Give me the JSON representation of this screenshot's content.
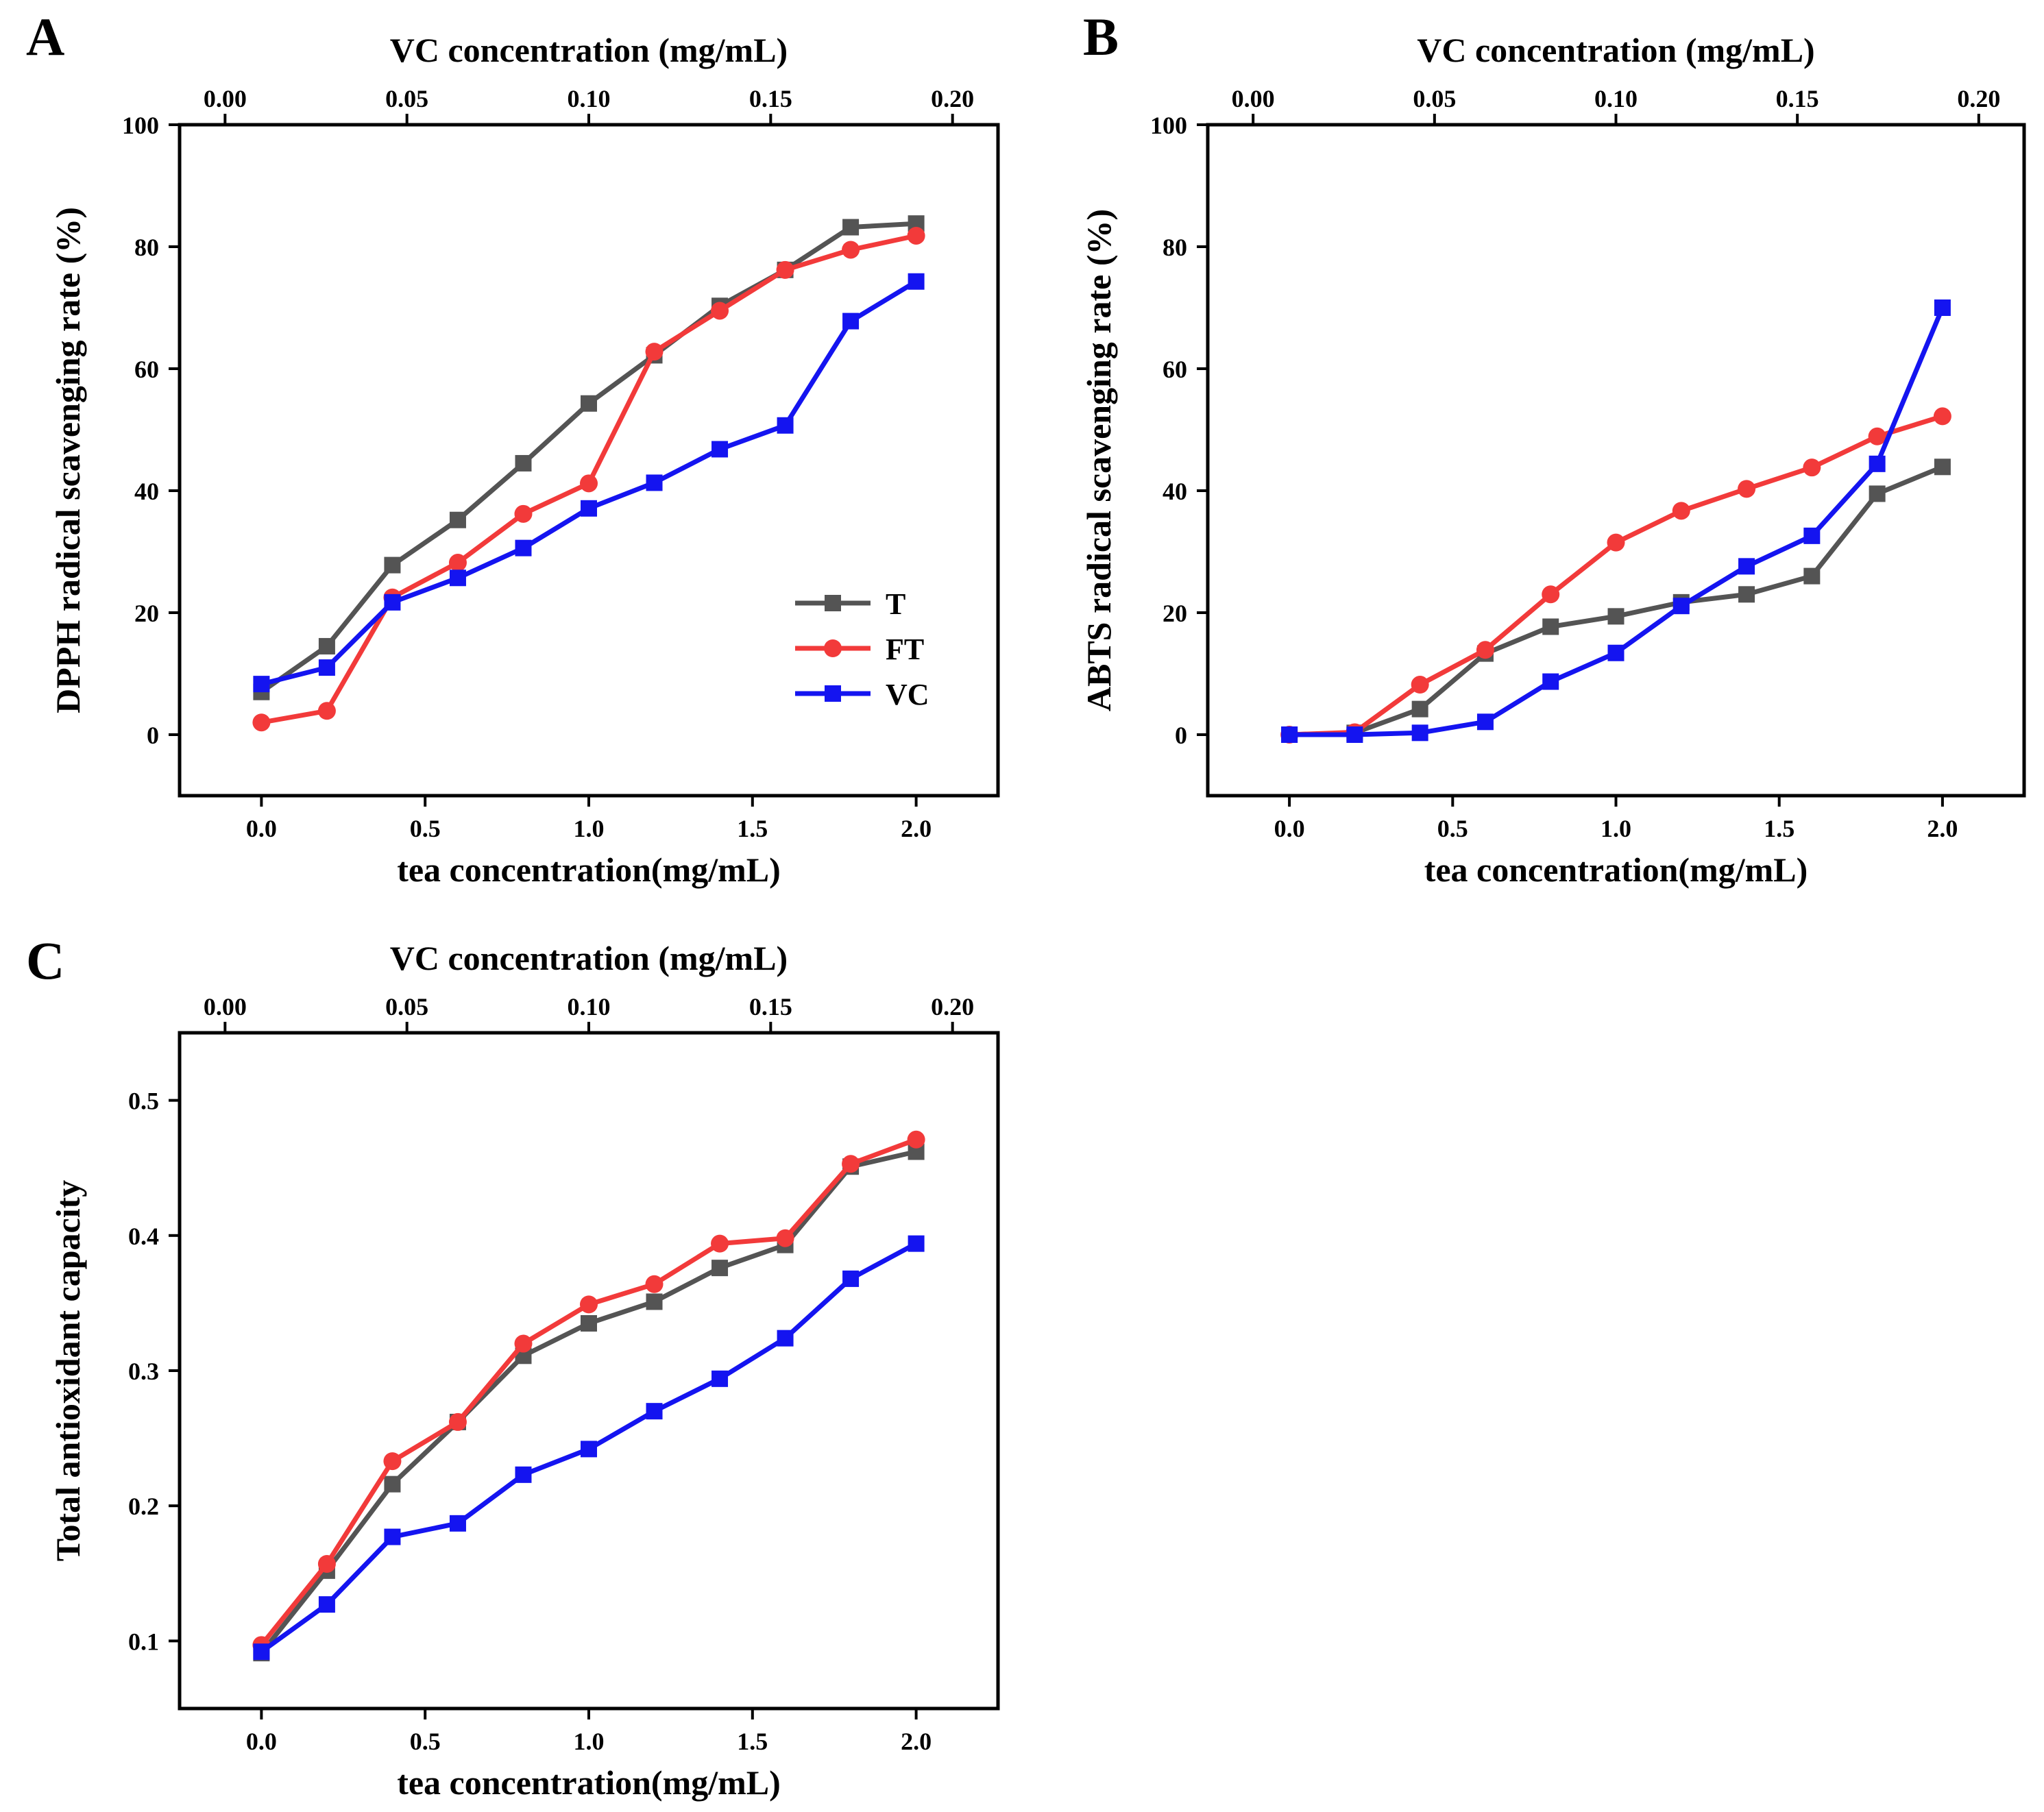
{
  "colors": {
    "T": "#545454",
    "FT": "#f23a3a",
    "VC": "#1414f0"
  },
  "chart_data": [
    {
      "panel_label": "A",
      "type": "line",
      "title": "",
      "xlabel": "tea concentration(mg/mL)",
      "ylabel": "DPPH radical scavenging rate (%)",
      "x2label": "VC concentration (mg/mL)",
      "xlim": [
        -0.25,
        2.25
      ],
      "ylim": [
        -10,
        100
      ],
      "x2lim": [
        -0.0125,
        0.2125
      ],
      "xticks": [
        "0.0",
        "0.5",
        "1.0",
        "1.5",
        "2.0"
      ],
      "yticks": [
        "0",
        "20",
        "40",
        "60",
        "80",
        "100"
      ],
      "x2ticks": [
        "0.00",
        "0.05",
        "0.10",
        "0.15",
        "0.20"
      ],
      "x": [
        0.0,
        0.2,
        0.4,
        0.6,
        0.8,
        1.0,
        1.2,
        1.4,
        1.6,
        1.8,
        2.0
      ],
      "legend": {
        "position": "lower-right",
        "entries": [
          "T",
          "FT",
          "VC"
        ]
      },
      "series": [
        {
          "name": "T",
          "marker": "square",
          "values": [
            7,
            14.5,
            27.8,
            35.2,
            44.5,
            54.3,
            62.2,
            70.3,
            76.2,
            83.2,
            83.8
          ]
        },
        {
          "name": "FT",
          "marker": "circle",
          "values": [
            2,
            3.9,
            22.5,
            28.2,
            36.2,
            41.2,
            62.8,
            69.5,
            76.2,
            79.5,
            81.8
          ]
        },
        {
          "name": "VC",
          "marker": "square",
          "values": [
            8.3,
            11,
            21.7,
            25.7,
            30.6,
            37.1,
            41.3,
            46.8,
            50.7,
            67.8,
            74.3
          ]
        }
      ]
    },
    {
      "panel_label": "B",
      "type": "line",
      "title": "",
      "xlabel": "tea concentration(mg/mL)",
      "ylabel": "ABTS radical scavenging rate (%)",
      "x2label": "VC concentration (mg/mL)",
      "xlim": [
        -0.25,
        2.25
      ],
      "ylim": [
        -10,
        100
      ],
      "x2lim": [
        -0.0125,
        0.2125
      ],
      "xticks": [
        "0.0",
        "0.5",
        "1.0",
        "1.5",
        "2.0"
      ],
      "yticks": [
        "0",
        "20",
        "40",
        "60",
        "80",
        "100"
      ],
      "x2ticks": [
        "0.00",
        "0.05",
        "0.10",
        "0.15",
        "0.20"
      ],
      "x": [
        0.0,
        0.2,
        0.4,
        0.6,
        0.8,
        1.0,
        1.2,
        1.4,
        1.6,
        1.8,
        2.0
      ],
      "series": [
        {
          "name": "T",
          "marker": "square",
          "values": [
            0,
            0.3,
            4.2,
            13.3,
            17.7,
            19.4,
            21.7,
            23,
            26,
            39.5,
            43.9
          ]
        },
        {
          "name": "FT",
          "marker": "circle",
          "values": [
            0,
            0.4,
            8.2,
            13.9,
            23,
            31.5,
            36.7,
            40.3,
            43.8,
            48.9,
            52.2
          ]
        },
        {
          "name": "VC",
          "marker": "square",
          "values": [
            0,
            0,
            0.3,
            2.1,
            8.7,
            13.4,
            21.1,
            27.6,
            32.6,
            44.4,
            70
          ]
        }
      ]
    },
    {
      "panel_label": "C",
      "type": "line",
      "title": "",
      "xlabel": "tea concentration(mg/mL)",
      "ylabel": "Total antioxidant capacity",
      "x2label": "VC concentration (mg/mL)",
      "xlim": [
        -0.25,
        2.25
      ],
      "ylim": [
        0.05,
        0.55
      ],
      "x2lim": [
        -0.0125,
        0.2125
      ],
      "xticks": [
        "0.0",
        "0.5",
        "1.0",
        "1.5",
        "2.0"
      ],
      "yticks": [
        "0.1",
        "0.2",
        "0.3",
        "0.4",
        "0.5"
      ],
      "x2ticks": [
        "0.00",
        "0.05",
        "0.10",
        "0.15",
        "0.20"
      ],
      "x": [
        0.0,
        0.2,
        0.4,
        0.6,
        0.8,
        1.0,
        1.2,
        1.4,
        1.6,
        1.8,
        2.0
      ],
      "series": [
        {
          "name": "T",
          "marker": "square",
          "values": [
            0.091,
            0.152,
            0.216,
            0.262,
            0.311,
            0.335,
            0.351,
            0.376,
            0.393,
            0.451,
            0.462
          ]
        },
        {
          "name": "FT",
          "marker": "circle",
          "values": [
            0.097,
            0.157,
            0.233,
            0.262,
            0.32,
            0.349,
            0.364,
            0.394,
            0.398,
            0.453,
            0.471
          ]
        },
        {
          "name": "VC",
          "marker": "square",
          "values": [
            0.092,
            0.127,
            0.177,
            0.187,
            0.223,
            0.242,
            0.27,
            0.294,
            0.324,
            0.368,
            0.394
          ]
        }
      ]
    }
  ]
}
